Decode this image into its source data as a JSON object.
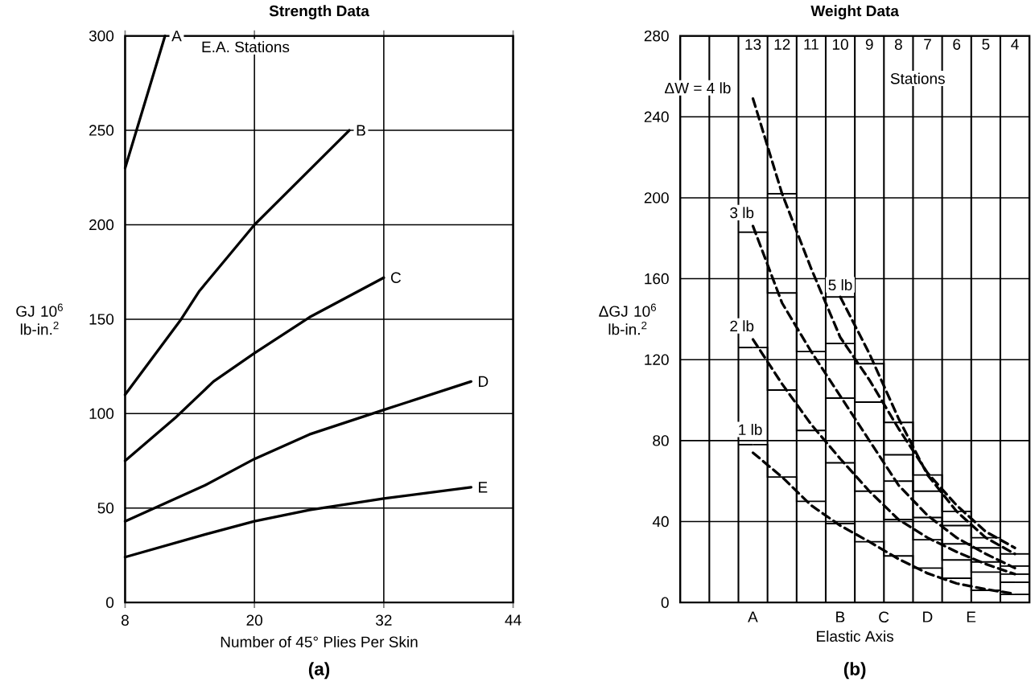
{
  "chart_data": [
    {
      "type": "line",
      "title": "Strength Data",
      "subtitle": "(a)",
      "xlabel": "Number of 45° Plies Per Skin",
      "ylabel": "GJ 10$^{6}$ lb-in.$^{2}$",
      "xlim": [
        8,
        44
      ],
      "xticks": [
        8,
        20,
        32,
        44
      ],
      "ylim": [
        0,
        300
      ],
      "yticks": [
        0,
        50,
        100,
        150,
        200,
        250,
        300
      ],
      "grid": true,
      "annotations": [
        "E.A. Stations"
      ],
      "series": [
        {
          "name": "A",
          "color": "#000000",
          "x": [
            8,
            11.7
          ],
          "values": [
            230,
            300
          ]
        },
        {
          "name": "B",
          "color": "#000000",
          "x": [
            8,
            13.2,
            14.9,
            20,
            28.8
          ],
          "values": [
            110,
            150,
            165,
            200,
            250
          ]
        },
        {
          "name": "C",
          "color": "#000000",
          "x": [
            8,
            12.7,
            16.2,
            20,
            25.1,
            32
          ],
          "values": [
            75,
            98,
            117,
            132,
            151,
            172
          ]
        },
        {
          "name": "D",
          "color": "#000000",
          "x": [
            8,
            15.4,
            20,
            25.1,
            32,
            40.1
          ],
          "values": [
            43,
            62,
            76,
            89,
            102,
            117
          ]
        },
        {
          "name": "E",
          "color": "#000000",
          "x": [
            8,
            15.4,
            20,
            25.1,
            32,
            40.1
          ],
          "values": [
            24,
            36,
            43,
            49,
            55,
            61
          ]
        }
      ]
    },
    {
      "type": "line",
      "title": "Weight Data",
      "subtitle": "(b)",
      "xlabel": "Elastic Axis",
      "ylabel": "ΔGJ 10$^{6}$ lb-in.$^{2}$",
      "categories": [
        null,
        null,
        "13",
        "12",
        "11",
        "10",
        "9",
        "8",
        "7",
        "6",
        "5",
        "4"
      ],
      "ylim": [
        0,
        280
      ],
      "yticks": [
        0,
        40,
        80,
        120,
        160,
        200,
        240,
        280
      ],
      "grid": "y",
      "annotations": [
        "Stations",
        "A",
        "B",
        "C",
        "D",
        "E"
      ],
      "series": [
        {
          "name": "1 lb",
          "color": "#000000",
          "line_style": "dashed",
          "values": [
            null,
            null,
            74,
            62,
            48,
            38,
            30,
            21.5,
            14.4,
            9.4,
            6.5,
            4.3
          ]
        },
        {
          "name": "2 lb",
          "color": "#000000",
          "line_style": "dashed",
          "values": [
            null,
            null,
            130,
            108,
            88,
            71,
            55,
            41,
            32,
            25,
            19,
            14
          ]
        },
        {
          "name": "3 lb",
          "color": "#000000",
          "line_style": "dashed",
          "values": [
            null,
            null,
            186,
            148,
            124,
            102,
            80,
            58,
            43,
            32,
            24,
            17
          ]
        },
        {
          "name": "ΔW = 4 lb",
          "color": "#000000",
          "line_style": "dashed",
          "values": [
            null,
            null,
            249,
            202,
            165,
            131,
            110,
            86,
            64,
            48,
            35,
            27
          ]
        },
        {
          "name": "5 lb",
          "color": "#000000",
          "line_style": "dashed",
          "values": [
            null,
            null,
            null,
            null,
            null,
            151,
            123,
            91,
            63,
            45,
            32,
            24
          ]
        },
        {
          "type": "step",
          "color": "#000000",
          "values": [
            null,
            null,
            78,
            62,
            50,
            39,
            30,
            23,
            17,
            12,
            6,
            4
          ]
        },
        {
          "type": "step",
          "color": "#000000",
          "values": [
            null,
            null,
            126,
            105,
            85,
            69,
            55,
            41,
            31,
            21,
            15,
            10
          ]
        },
        {
          "type": "step",
          "color": "#000000",
          "values": [
            null,
            null,
            183,
            153,
            124,
            101,
            null,
            60,
            42,
            29,
            20,
            14
          ]
        },
        {
          "type": "step",
          "color": "#000000",
          "values": [
            null,
            null,
            null,
            202,
            null,
            128,
            99,
            73,
            55,
            38,
            27,
            18
          ]
        },
        {
          "type": "step",
          "color": "#000000",
          "values": [
            null,
            null,
            null,
            null,
            null,
            151,
            118,
            89,
            63,
            45,
            32,
            24
          ]
        }
      ]
    }
  ]
}
